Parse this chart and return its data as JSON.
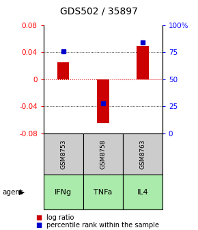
{
  "title": "GDS502 / 35897",
  "samples": [
    "GSM8753",
    "GSM8758",
    "GSM8763"
  ],
  "agents": [
    "IFNg",
    "TNFa",
    "IL4"
  ],
  "log_ratios": [
    0.025,
    -0.065,
    0.05
  ],
  "percentile_ranks": [
    76,
    28,
    84
  ],
  "ylim_left": [
    -0.08,
    0.08
  ],
  "ylim_right": [
    0,
    100
  ],
  "bar_color": "#cc0000",
  "percentile_color": "#0000cc",
  "agent_bg_color": "#aaeaaa",
  "sample_bg_color": "#cccccc",
  "zero_line_color": "#dd0000",
  "bar_width": 0.3,
  "legend_red_label": "log ratio",
  "legend_blue_label": "percentile rank within the sample",
  "left_ticks": [
    -0.08,
    -0.04,
    0,
    0.04,
    0.08
  ],
  "right_ticks": [
    0,
    25,
    50,
    75,
    100
  ],
  "right_tick_labels": [
    "0",
    "25",
    "50",
    "75",
    "100%"
  ]
}
